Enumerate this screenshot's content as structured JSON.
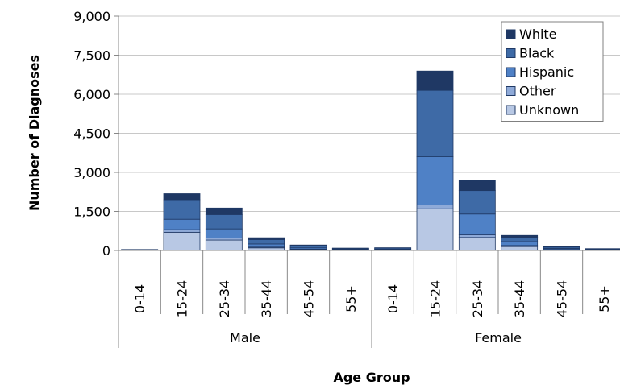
{
  "chart_data": {
    "type": "bar",
    "stacked": true,
    "title": "",
    "xlabel": "Age Group",
    "ylabel": "Number of Diagnoses",
    "ylim": [
      0,
      9000
    ],
    "yticks": [
      "0",
      "1,500",
      "3,000",
      "4,500",
      "6,000",
      "7,500",
      "9,000"
    ],
    "ytick_values": [
      0,
      1500,
      3000,
      4500,
      6000,
      7500,
      9000
    ],
    "groups": [
      {
        "label": "Male",
        "categories": [
          "0-14",
          "15-24",
          "25-34",
          "35-44",
          "45-54",
          "55+"
        ]
      },
      {
        "label": "Female",
        "categories": [
          "0-14",
          "15-24",
          "25-34",
          "35-44",
          "45-54",
          "55+"
        ]
      }
    ],
    "legend_position": "top-right",
    "series": [
      {
        "name": "Unknown",
        "color": "#b8c8e4",
        "values": [
          10,
          700,
          400,
          100,
          40,
          20,
          20,
          1600,
          500,
          150,
          30,
          15
        ]
      },
      {
        "name": "Other",
        "color": "#8faad8",
        "values": [
          3,
          100,
          80,
          30,
          10,
          5,
          5,
          150,
          100,
          40,
          10,
          5
        ]
      },
      {
        "name": "Hispanic",
        "color": "#4f81c6",
        "values": [
          8,
          400,
          350,
          120,
          50,
          25,
          25,
          1850,
          800,
          150,
          40,
          20
        ]
      },
      {
        "name": "Black",
        "color": "#3e6aa6",
        "values": [
          10,
          750,
          550,
          170,
          80,
          30,
          40,
          2550,
          900,
          170,
          50,
          20
        ]
      },
      {
        "name": "White",
        "color": "#1f3864",
        "values": [
          6,
          230,
          250,
          70,
          30,
          10,
          15,
          740,
          400,
          70,
          20,
          10
        ]
      }
    ]
  }
}
